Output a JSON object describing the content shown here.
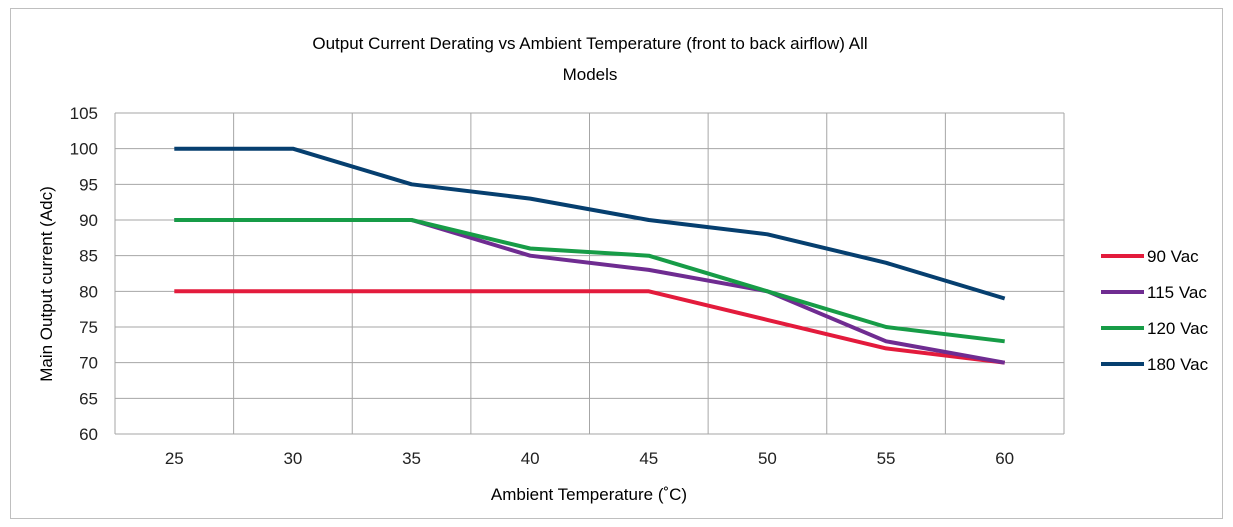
{
  "chart_data": {
    "type": "line",
    "title_line1": "Output Current Derating vs Ambient Temperature (front to back airflow) All",
    "title_line2": "Models",
    "xlabel": "Ambient Temperature (˚C)",
    "ylabel": "Main Output current (Adc)",
    "x": [
      25,
      30,
      35,
      40,
      45,
      50,
      55,
      60
    ],
    "ylim": [
      60,
      105
    ],
    "yticks": [
      60,
      65,
      70,
      75,
      80,
      85,
      90,
      95,
      100,
      105
    ],
    "grid": true,
    "legend_position": "right",
    "series": [
      {
        "name": "90 Vac",
        "color": "#e31b3c",
        "values": [
          80,
          80,
          80,
          80,
          80,
          76,
          72,
          70
        ]
      },
      {
        "name": "115 Vac",
        "color": "#6f2c91",
        "values": [
          90,
          90,
          90,
          85,
          83,
          80,
          73,
          70
        ]
      },
      {
        "name": "120 Vac",
        "color": "#179c47",
        "values": [
          90,
          90,
          90,
          86,
          85,
          80,
          75,
          73
        ]
      },
      {
        "name": "180 Vac",
        "color": "#063f6f",
        "values": [
          100,
          100,
          95,
          93,
          90,
          88,
          84,
          79
        ]
      }
    ]
  }
}
